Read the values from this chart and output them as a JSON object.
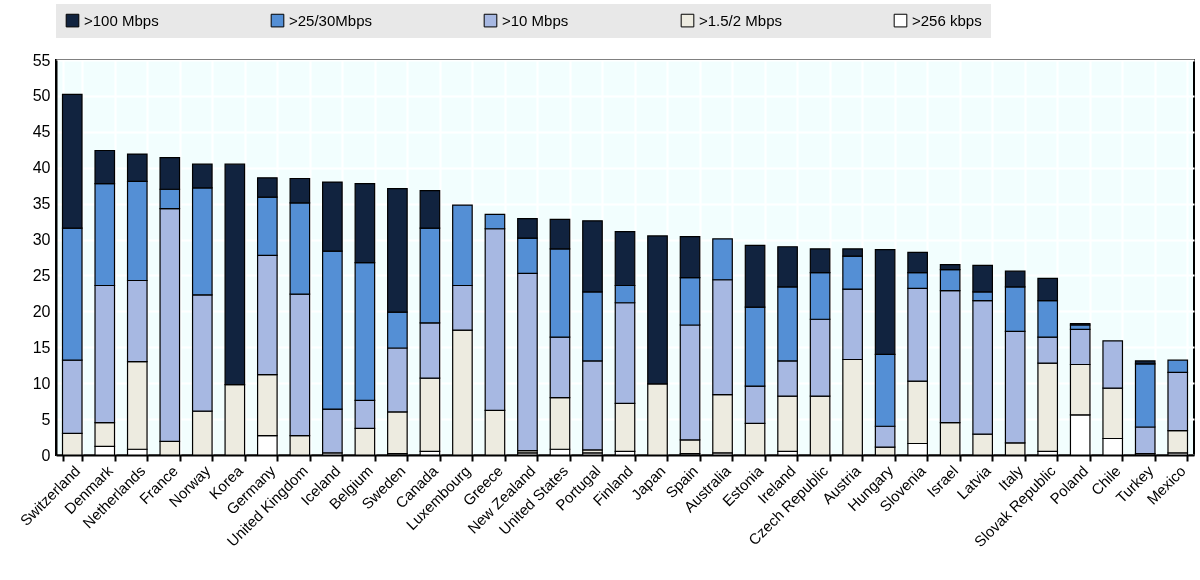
{
  "chart_data": {
    "type": "bar",
    "stacked": true,
    "categories": [
      "Switzerland",
      "Denmark",
      "Netherlands",
      "France",
      "Norway",
      "Korea",
      "Germany",
      "United Kingdom",
      "Iceland",
      "Belgium",
      "Sweden",
      "Canada",
      "Luxembourg",
      "Greece",
      "New Zealand",
      "United States",
      "Portugal",
      "Finland",
      "Japan",
      "Spain",
      "Australia",
      "Estonia",
      "Ireland",
      "Czech Republic",
      "Austria",
      "Hungary",
      "Slovenia",
      "Israel",
      "Latvia",
      "Italy",
      "Slovak Republic",
      "Poland",
      "Chile",
      "Turkey",
      "Mexico"
    ],
    "series": [
      {
        "name": ">256 kbps",
        "color": "#ffffff",
        "values": [
          0,
          1.2,
          0.8,
          0,
          0,
          0,
          2.7,
          0,
          0.3,
          0,
          0.2,
          0.5,
          0,
          0,
          0.3,
          0.8,
          0.3,
          0.5,
          0,
          0.2,
          0.3,
          0,
          0.5,
          0,
          0,
          0,
          1.6,
          0,
          0,
          0,
          0.5,
          5.6,
          2.3,
          0.2,
          0.3
        ]
      },
      {
        "name": ">1.5/2 Mbps",
        "color": "#edebe0",
        "values": [
          3.0,
          3.3,
          12.2,
          1.9,
          6.1,
          9.8,
          8.5,
          2.7,
          null,
          3.7,
          5.8,
          10.2,
          17.4,
          6.2,
          0.3,
          7.2,
          0.4,
          6.7,
          9.9,
          1.9,
          8.1,
          4.4,
          7.7,
          8.2,
          13.3,
          1.1,
          8.7,
          4.5,
          2.9,
          1.7,
          12.3,
          7.0,
          7.0,
          null,
          3.1
        ]
      },
      {
        "name": ">10 Mbps",
        "color": "#a7b8e2",
        "values": [
          10.2,
          19.1,
          11.3,
          32.4,
          16.2,
          0,
          16.6,
          19.7,
          6.1,
          3.9,
          8.9,
          7.7,
          6.2,
          25.3,
          24.7,
          8.4,
          12.4,
          14.0,
          0,
          16.0,
          16.0,
          5.2,
          4.9,
          10.7,
          9.8,
          2.9,
          12.9,
          18.4,
          18.6,
          15.5,
          3.6,
          4.9,
          6.6,
          3.7,
          8.1
        ]
      },
      {
        "name": ">25/30Mbps",
        "color": "#548fd5",
        "values": [
          18.4,
          14.2,
          13.8,
          2.7,
          14.9,
          0,
          8.1,
          12.7,
          22.0,
          19.2,
          5.0,
          13.2,
          11.2,
          2.0,
          4.9,
          12.3,
          9.6,
          2.4,
          0,
          6.6,
          5.7,
          11.0,
          10.3,
          6.5,
          4.6,
          10.0,
          2.2,
          2.9,
          1.2,
          6.2,
          5.1,
          0.6,
          0,
          8.8,
          1.7
        ]
      },
      {
        "name": ">100 Mbps",
        "color": "#11233f",
        "values": [
          18.6,
          4.6,
          3.8,
          4.4,
          3.3,
          30.7,
          2.7,
          3.4,
          9.6,
          11.0,
          17.2,
          5.2,
          0,
          0,
          2.7,
          4.1,
          9.9,
          7.5,
          20.6,
          5.7,
          0,
          8.6,
          5.6,
          3.3,
          1.0,
          14.6,
          2.8,
          0.7,
          3.7,
          2.2,
          3.1,
          0.2,
          0,
          0.4,
          0
        ]
      }
    ],
    "ylim": [
      0,
      55
    ],
    "yticks": [
      0,
      5,
      10,
      15,
      20,
      25,
      30,
      35,
      40,
      45,
      50,
      55
    ],
    "grid": true,
    "legend": "top"
  }
}
